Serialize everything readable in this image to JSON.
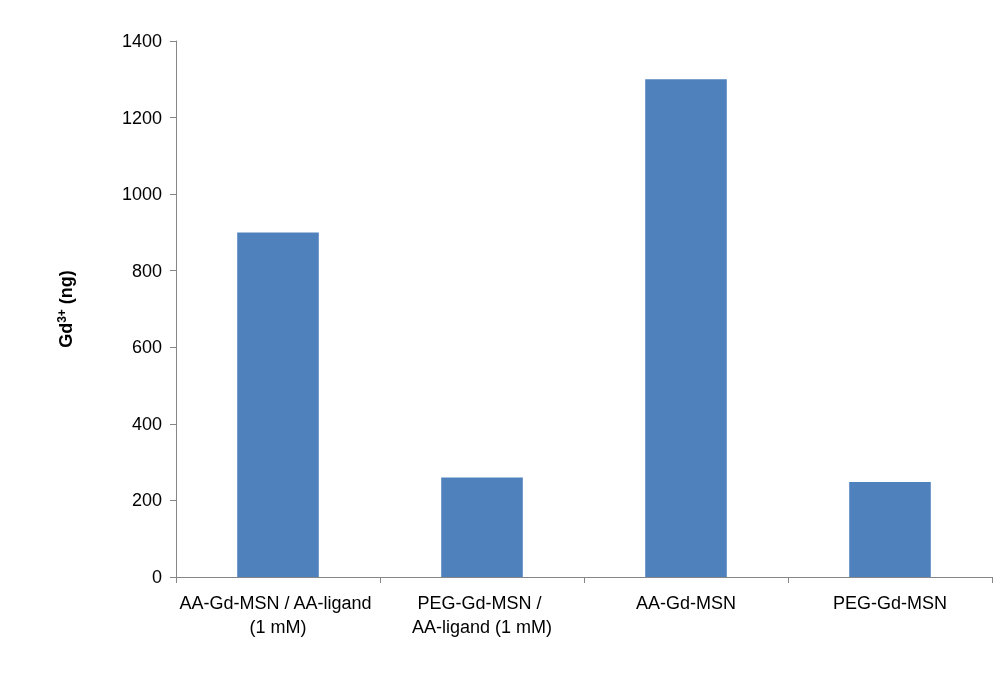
{
  "chart_data": {
    "type": "bar",
    "ylabel": "Gd$^{3+}$ (ng)",
    "categories": [
      "AA-Gd-MSN / AA-ligand (1 mM)",
      "PEG-Gd-MSN / AA-ligand (1 mM)",
      "AA-Gd-MSN",
      "PEG-Gd-MSN"
    ],
    "values": [
      900,
      260,
      1300,
      248
    ],
    "color": "#4f81bd",
    "ylim": [
      0,
      1400
    ],
    "yticks": [
      0,
      200,
      400,
      600,
      800,
      1000,
      1200,
      1400
    ],
    "grid": false
  }
}
